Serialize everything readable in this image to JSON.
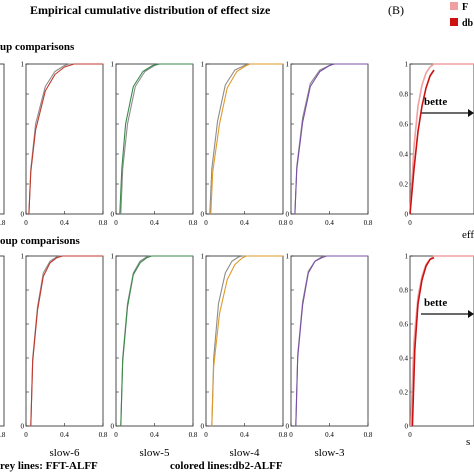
{
  "figure": {
    "title": "Empirical cumulative distribution of effect size",
    "panel_b_label": "(B)",
    "row1_label": "up comparisons",
    "row2_label": "oup comparisons",
    "footer_left": "rey lines: FFT-ALFF",
    "footer_right": "colored lines:db2-ALFF",
    "panel_b_legend": [
      "F",
      "db"
    ],
    "panel_b_annotation": "bette",
    "panel_b_xlabel_top": "eff",
    "panel_b_xlabel_bottom": "s",
    "colors": {
      "grey": "#8c8c8c",
      "slow6": "#c0392b",
      "slow5": "#3a8a4a",
      "slow4": "#e09a2a",
      "slow3": "#7b4fa8",
      "fft_light": "#f0a0a0",
      "db2_dark": "#cc1111"
    }
  },
  "chart_data": [
    {
      "type": "line",
      "row": 1,
      "xlabel": "",
      "ylabel": "",
      "xlim": [
        0,
        0.8
      ],
      "ylim": [
        0,
        1
      ],
      "xticks": [
        "0",
        "0.4",
        "0.8"
      ],
      "yticks": [
        "0",
        "0.2",
        "0.4",
        "0.6",
        "0.8",
        "1"
      ],
      "series": [
        {
          "color": "#8c8c8c",
          "x": [
            0.03,
            0.05,
            0.1,
            0.2,
            0.3,
            0.4,
            0.45
          ],
          "y": [
            0,
            0.3,
            0.6,
            0.85,
            0.95,
            0.99,
            1
          ]
        },
        {
          "color": "#c0392b",
          "x": [
            0.03,
            0.05,
            0.1,
            0.2,
            0.3,
            0.4,
            0.5
          ],
          "y": [
            0,
            0.28,
            0.56,
            0.82,
            0.93,
            0.98,
            1
          ]
        }
      ]
    },
    {
      "type": "line",
      "row": 1,
      "xlabel": "",
      "ylabel": "",
      "xlim": [
        0,
        0.8
      ],
      "ylim": [
        0,
        1
      ],
      "xticks": [
        "0",
        "0.4",
        "0.8"
      ],
      "yticks": [
        "0",
        "0.2",
        "0.4",
        "0.6",
        "0.8",
        "1"
      ],
      "series": [
        {
          "color": "#8c8c8c",
          "x": [
            0.05,
            0.07,
            0.12,
            0.2,
            0.3,
            0.4,
            0.45
          ],
          "y": [
            0,
            0.3,
            0.6,
            0.85,
            0.95,
            0.99,
            1
          ]
        },
        {
          "color": "#3a8a4a",
          "x": [
            0.04,
            0.06,
            0.1,
            0.18,
            0.28,
            0.38,
            0.45
          ],
          "y": [
            0,
            0.3,
            0.6,
            0.85,
            0.95,
            0.99,
            1
          ]
        }
      ]
    },
    {
      "type": "line",
      "row": 1,
      "xlabel": "",
      "ylabel": "",
      "xlim": [
        0,
        0.8
      ],
      "ylim": [
        0,
        1
      ],
      "xticks": [
        "0",
        "0.4",
        "0.8"
      ],
      "yticks": [
        "0",
        "0.2",
        "0.4",
        "0.6",
        "0.8",
        "1"
      ],
      "series": [
        {
          "color": "#8c8c8c",
          "x": [
            0.04,
            0.06,
            0.12,
            0.2,
            0.3,
            0.4,
            0.45
          ],
          "y": [
            0,
            0.3,
            0.62,
            0.86,
            0.96,
            0.99,
            1
          ]
        },
        {
          "color": "#e09a2a",
          "x": [
            0.05,
            0.07,
            0.14,
            0.22,
            0.32,
            0.42,
            0.46
          ],
          "y": [
            0,
            0.28,
            0.6,
            0.84,
            0.95,
            0.99,
            1
          ]
        }
      ]
    },
    {
      "type": "line",
      "row": 1,
      "xlabel": "",
      "ylabel": "",
      "xlim": [
        0,
        0.8
      ],
      "ylim": [
        0,
        1
      ],
      "xticks": [
        "0",
        "0.4",
        "0.8"
      ],
      "yticks": [
        "0",
        "0.2",
        "0.4",
        "0.6",
        "0.8",
        "1"
      ],
      "series": [
        {
          "color": "#8c8c8c",
          "x": [
            0.04,
            0.06,
            0.12,
            0.2,
            0.3,
            0.4,
            0.45
          ],
          "y": [
            0,
            0.32,
            0.64,
            0.87,
            0.96,
            0.99,
            1
          ]
        },
        {
          "color": "#7b4fa8",
          "x": [
            0.04,
            0.06,
            0.12,
            0.2,
            0.3,
            0.4,
            0.45
          ],
          "y": [
            0,
            0.3,
            0.61,
            0.85,
            0.95,
            0.99,
            1
          ]
        }
      ]
    },
    {
      "type": "line",
      "row": 2,
      "xlabel": "slow-6",
      "ylabel": "",
      "xlim": [
        0,
        0.8
      ],
      "ylim": [
        0,
        1
      ],
      "xticks": [
        "0",
        "0.4",
        "0.8"
      ],
      "yticks": [
        "0",
        "0.2",
        "0.4",
        "0.6",
        "0.8",
        "1"
      ],
      "series": [
        {
          "color": "#8c8c8c",
          "x": [
            0.05,
            0.07,
            0.12,
            0.18,
            0.25,
            0.32,
            0.36
          ],
          "y": [
            0,
            0.4,
            0.7,
            0.9,
            0.97,
            0.995,
            1
          ]
        },
        {
          "color": "#c0392b",
          "x": [
            0.05,
            0.07,
            0.12,
            0.18,
            0.25,
            0.32,
            0.38
          ],
          "y": [
            0,
            0.38,
            0.68,
            0.88,
            0.96,
            0.99,
            1
          ]
        }
      ]
    },
    {
      "type": "line",
      "row": 2,
      "xlabel": "slow-5",
      "ylabel": "",
      "xlim": [
        0,
        0.8
      ],
      "ylim": [
        0,
        1
      ],
      "xticks": [
        "0",
        "0.4",
        "0.8"
      ],
      "yticks": [
        "0",
        "0.2",
        "0.4",
        "0.6",
        "0.8",
        "1"
      ],
      "series": [
        {
          "color": "#8c8c8c",
          "x": [
            0.05,
            0.07,
            0.12,
            0.18,
            0.25,
            0.32,
            0.36
          ],
          "y": [
            0,
            0.4,
            0.72,
            0.9,
            0.97,
            0.995,
            1
          ]
        },
        {
          "color": "#3a8a4a",
          "x": [
            0.05,
            0.07,
            0.12,
            0.18,
            0.25,
            0.32,
            0.37
          ],
          "y": [
            0,
            0.38,
            0.7,
            0.89,
            0.96,
            0.99,
            1
          ]
        }
      ]
    },
    {
      "type": "line",
      "row": 2,
      "xlabel": "slow-4",
      "ylabel": "",
      "xlim": [
        0,
        0.8
      ],
      "ylim": [
        0,
        1
      ],
      "xticks": [
        "0",
        "0.4",
        "0.8"
      ],
      "yticks": [
        "0",
        "0.2",
        "0.4",
        "0.6",
        "0.8",
        "1"
      ],
      "series": [
        {
          "color": "#8c8c8c",
          "x": [
            0.06,
            0.08,
            0.13,
            0.2,
            0.27,
            0.34,
            0.38
          ],
          "y": [
            0,
            0.4,
            0.72,
            0.9,
            0.97,
            0.995,
            1
          ]
        },
        {
          "color": "#e09a2a",
          "x": [
            0.06,
            0.08,
            0.14,
            0.22,
            0.3,
            0.38,
            0.42
          ],
          "y": [
            0,
            0.35,
            0.66,
            0.86,
            0.95,
            0.99,
            1
          ]
        }
      ]
    },
    {
      "type": "line",
      "row": 2,
      "xlabel": "slow-3",
      "ylabel": "",
      "xlim": [
        0,
        0.8
      ],
      "ylim": [
        0,
        1
      ],
      "xticks": [
        "0",
        "0.4",
        "0.8"
      ],
      "yticks": [
        "0",
        "0.2",
        "0.4",
        "0.6",
        "0.8",
        "1"
      ],
      "series": [
        {
          "color": "#8c8c8c",
          "x": [
            0.05,
            0.07,
            0.12,
            0.18,
            0.25,
            0.32,
            0.36
          ],
          "y": [
            0,
            0.42,
            0.73,
            0.91,
            0.97,
            0.995,
            1
          ]
        },
        {
          "color": "#7b4fa8",
          "x": [
            0.05,
            0.07,
            0.12,
            0.18,
            0.25,
            0.32,
            0.37
          ],
          "y": [
            0,
            0.4,
            0.71,
            0.9,
            0.97,
            0.99,
            1
          ]
        }
      ]
    },
    {
      "type": "line",
      "row": 1,
      "panel": "B",
      "xlabel": "eff",
      "ylabel": "",
      "xlim": [
        0,
        0.8
      ],
      "ylim": [
        0,
        1
      ],
      "xticks": [
        "0"
      ],
      "yticks": [
        "0",
        "0.2",
        "0.4",
        "0.6",
        "0.8",
        "1"
      ],
      "series": [
        {
          "color": "#f0a0a0",
          "x": [
            0.0,
            0.05,
            0.1,
            0.15,
            0.2,
            0.25,
            0.3
          ],
          "y": [
            0,
            0.45,
            0.72,
            0.86,
            0.94,
            0.98,
            1
          ]
        },
        {
          "color": "#cc1111",
          "x": [
            0.0,
            0.05,
            0.1,
            0.15,
            0.2,
            0.25,
            0.3
          ],
          "y": [
            0,
            0.3,
            0.55,
            0.72,
            0.84,
            0.92,
            0.96
          ]
        }
      ]
    },
    {
      "type": "line",
      "row": 2,
      "panel": "B",
      "xlabel": "s",
      "ylabel": "",
      "xlim": [
        0,
        0.8
      ],
      "ylim": [
        0,
        1
      ],
      "xticks": [
        "0"
      ],
      "yticks": [
        "0",
        "0.2",
        "0.4",
        "0.6",
        "0.8",
        "1"
      ],
      "series": [
        {
          "color": "#f0a0a0",
          "x": [
            0.01,
            0.05,
            0.1,
            0.15,
            0.2,
            0.25,
            0.3
          ],
          "y": [
            0,
            0.5,
            0.76,
            0.88,
            0.95,
            0.98,
            1
          ]
        },
        {
          "color": "#cc1111",
          "x": [
            0.03,
            0.06,
            0.1,
            0.15,
            0.2,
            0.25,
            0.3
          ],
          "y": [
            0,
            0.45,
            0.72,
            0.86,
            0.94,
            0.98,
            0.99
          ]
        }
      ]
    }
  ]
}
